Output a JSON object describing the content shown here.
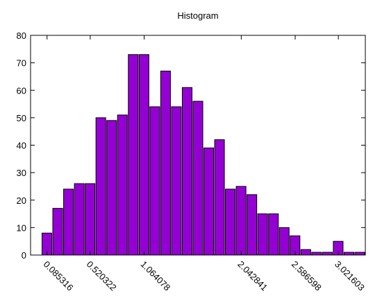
{
  "chart_data": {
    "type": "bar",
    "title": "Histogram",
    "categories": [
      "0.085316",
      null,
      null,
      null,
      "0.520322",
      null,
      null,
      null,
      null,
      "1.064078",
      null,
      null,
      null,
      null,
      null,
      null,
      null,
      null,
      "2.042841",
      null,
      null,
      null,
      null,
      "2.586598",
      null,
      null,
      null,
      "3.021603",
      null,
      null
    ],
    "values": [
      8,
      17,
      24,
      26,
      26,
      50,
      49,
      51,
      73,
      73,
      54,
      67,
      54,
      61,
      56,
      39,
      42,
      24,
      25,
      22,
      15,
      15,
      10,
      7,
      2,
      1,
      1,
      5,
      1,
      1
    ],
    "color": "#9400d3",
    "ylim": [
      0,
      80
    ],
    "yticks": [
      0,
      10,
      20,
      30,
      40,
      50,
      60,
      70,
      80
    ],
    "grid": false
  }
}
